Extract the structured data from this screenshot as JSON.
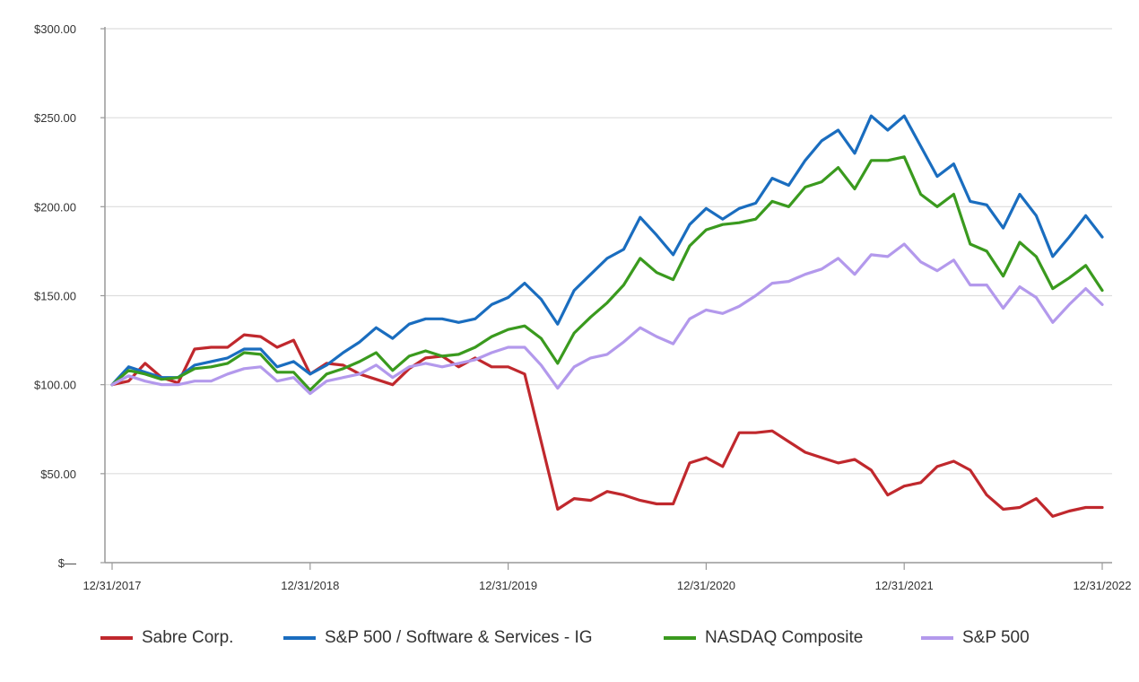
{
  "chart_data": {
    "type": "line",
    "title": "",
    "xlabel": "",
    "ylabel": "",
    "ylim": [
      0,
      300
    ],
    "y_ticks": [
      0,
      50,
      100,
      150,
      200,
      250,
      300
    ],
    "y_tick_labels": [
      "$—",
      "$50.00",
      "$100.00",
      "$150.00",
      "$200.00",
      "$250.00",
      "$300.00"
    ],
    "x_range": [
      0,
      60
    ],
    "x_ticks": [
      0,
      12,
      24,
      36,
      48,
      60
    ],
    "x_tick_labels": [
      "12/31/2017",
      "12/31/2018",
      "12/31/2019",
      "12/31/2020",
      "12/31/2021",
      "12/31/2022"
    ],
    "grid": "horizontal",
    "legend_position": "bottom",
    "series": [
      {
        "name": "Sabre Corp.",
        "color": "#c0282d",
        "values": [
          100,
          102,
          112,
          104,
          101,
          120,
          121,
          121,
          128,
          127,
          121,
          125,
          106,
          112,
          111,
          106,
          103,
          100,
          109,
          115,
          116,
          110,
          115,
          110,
          110,
          106,
          68,
          30,
          36,
          35,
          40,
          38,
          35,
          33,
          33,
          56,
          59,
          54,
          73,
          73,
          74,
          68,
          62,
          59,
          56,
          58,
          52,
          38,
          43,
          45,
          54,
          57,
          52,
          38,
          30,
          31,
          36,
          26,
          29,
          31,
          31
        ]
      },
      {
        "name": "S&P 500 / Software & Services - IG",
        "color": "#1a6dbf",
        "values": [
          100,
          110,
          107,
          104,
          104,
          111,
          113,
          115,
          120,
          120,
          110,
          113,
          106,
          111,
          118,
          124,
          132,
          126,
          134,
          137,
          137,
          135,
          137,
          145,
          149,
          157,
          148,
          134,
          153,
          162,
          171,
          176,
          194,
          184,
          173,
          190,
          199,
          193,
          199,
          202,
          216,
          212,
          226,
          237,
          243,
          230,
          251,
          243,
          251,
          234,
          217,
          224,
          203,
          201,
          188,
          207,
          195,
          172,
          183,
          195,
          183
        ]
      },
      {
        "name": "NASDAQ Composite",
        "color": "#3a9a1e",
        "values": [
          100,
          108,
          106,
          103,
          104,
          109,
          110,
          112,
          118,
          117,
          107,
          107,
          97,
          106,
          109,
          113,
          118,
          108,
          116,
          119,
          116,
          117,
          121,
          127,
          131,
          133,
          126,
          112,
          129,
          138,
          146,
          156,
          171,
          163,
          159,
          178,
          187,
          190,
          191,
          193,
          203,
          200,
          211,
          214,
          222,
          210,
          226,
          226,
          228,
          207,
          200,
          207,
          179,
          175,
          161,
          180,
          172,
          154,
          160,
          167,
          153
        ]
      },
      {
        "name": "S&P 500",
        "color": "#b399ec",
        "values": [
          100,
          105,
          102,
          100,
          100,
          102,
          102,
          106,
          109,
          110,
          102,
          104,
          95,
          102,
          104,
          106,
          111,
          104,
          110,
          112,
          110,
          112,
          114,
          118,
          121,
          121,
          111,
          98,
          110,
          115,
          117,
          124,
          132,
          127,
          123,
          137,
          142,
          140,
          144,
          150,
          157,
          158,
          162,
          165,
          171,
          162,
          173,
          172,
          179,
          169,
          164,
          170,
          156,
          156,
          143,
          155,
          149,
          135,
          145,
          154,
          145
        ]
      }
    ]
  }
}
